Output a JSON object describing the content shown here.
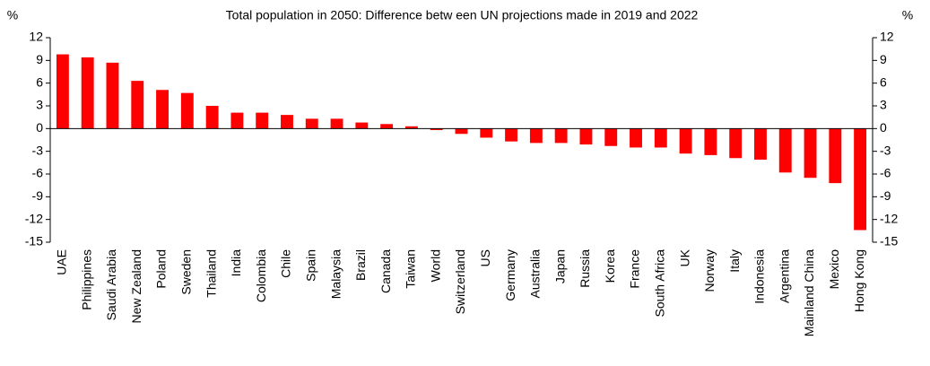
{
  "chart_data": {
    "type": "bar",
    "title": "Total population in 2050: Difference betw een UN projections made in 2019 and 2022",
    "y_label": "%",
    "y2_label": "%",
    "categories": [
      "UAE",
      "Philippines",
      "Saudi Arabia",
      "New Zealand",
      "Poland",
      "Sweden",
      "Thailand",
      "India",
      "Colombia",
      "Chile",
      "Spain",
      "Malaysia",
      "Brazil",
      "Canada",
      "Taiwan",
      "World",
      "Switzerland",
      "US",
      "Germany",
      "Australia",
      "Japan",
      "Russia",
      "Korea",
      "France",
      "South Africa",
      "UK",
      "Norway",
      "Italy",
      "Indonesia",
      "Argentina",
      "Mainland China",
      "Mexico",
      "Hong Kong"
    ],
    "values": [
      9.8,
      9.4,
      8.7,
      6.3,
      5.1,
      4.7,
      3.0,
      2.1,
      2.1,
      1.8,
      1.3,
      1.3,
      0.8,
      0.6,
      0.3,
      -0.2,
      -0.7,
      -1.2,
      -1.7,
      -1.9,
      -1.9,
      -2.1,
      -2.3,
      -2.5,
      -2.5,
      -3.3,
      -3.5,
      -3.9,
      -4.1,
      -5.8,
      -6.5,
      -7.2,
      -13.4
    ],
    "color": "#ff0000",
    "ylim": [
      -15,
      12
    ],
    "yticks": [
      12,
      9,
      6,
      3,
      0,
      -3,
      -6,
      -9,
      -12,
      -15
    ],
    "y2lim": [
      -15,
      12
    ],
    "y2ticks": [
      12,
      9,
      6,
      3,
      0,
      -3,
      -6,
      -9,
      -12,
      -15
    ],
    "grid": false
  }
}
